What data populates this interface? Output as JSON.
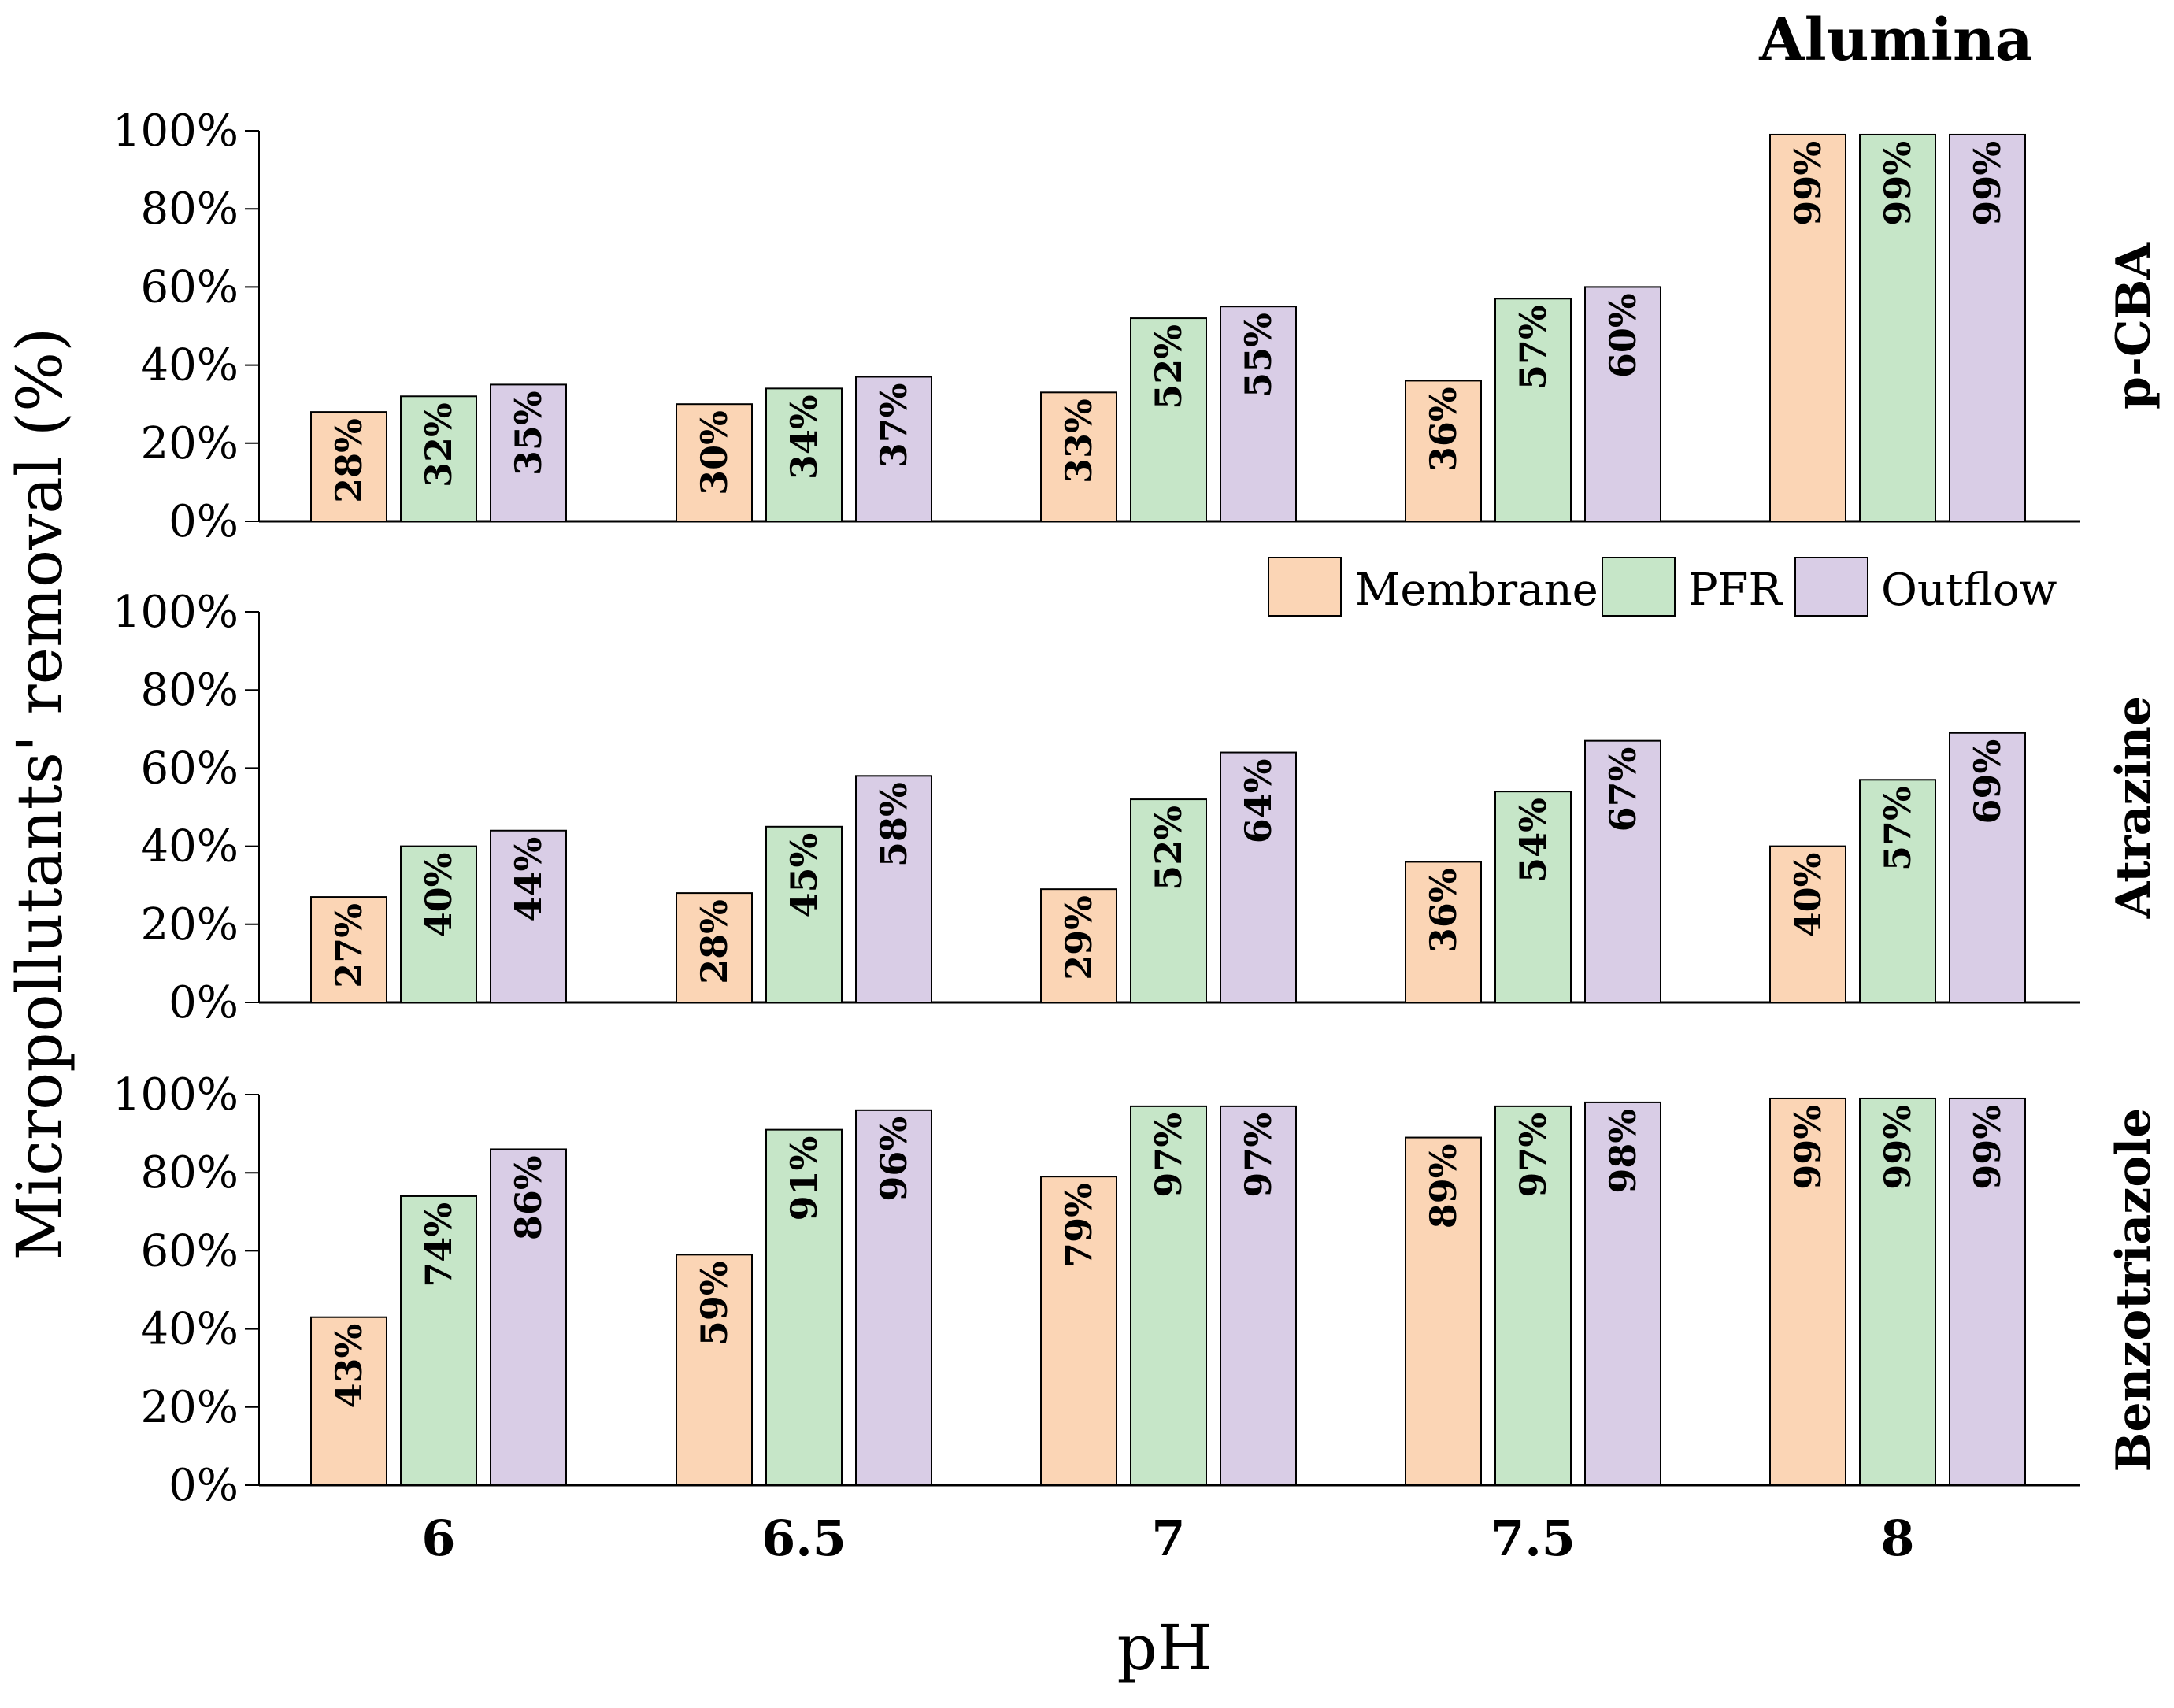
{
  "chart_data": {
    "type": "bar",
    "title": "Alumina",
    "xlabel": "pH",
    "ylabel": "Micropollutants' removal (%)",
    "ylim": [
      0,
      100
    ],
    "y_ticks": [
      "0%",
      "20%",
      "40%",
      "60%",
      "80%",
      "100%"
    ],
    "categories": [
      "6",
      "6.5",
      "7",
      "7.5",
      "8"
    ],
    "legend": {
      "placement": "right, between top and middle panels",
      "entries": [
        "Membrane",
        "PFR",
        "Outflow"
      ]
    },
    "colors": {
      "Membrane": "#fbd5b5",
      "PFR": "#c6e6c8",
      "Outflow": "#d9cde6",
      "outline": "#000000"
    },
    "panels": [
      {
        "name": "p-CBA",
        "series": [
          {
            "name": "Membrane",
            "values": [
              28,
              30,
              33,
              36,
              99
            ],
            "labels": [
              "28%",
              "30%",
              "33%",
              "36%",
              "99%"
            ]
          },
          {
            "name": "PFR",
            "values": [
              32,
              34,
              52,
              57,
              99
            ],
            "labels": [
              "32%",
              "34%",
              "52%",
              "57%",
              "99%"
            ]
          },
          {
            "name": "Outflow",
            "values": [
              35,
              37,
              55,
              60,
              99
            ],
            "labels": [
              "35%",
              "37%",
              "55%",
              "60%",
              "99%"
            ]
          }
        ]
      },
      {
        "name": "Atrazine",
        "series": [
          {
            "name": "Membrane",
            "values": [
              27,
              28,
              29,
              36,
              40
            ],
            "labels": [
              "27%",
              "28%",
              "29%",
              "36%",
              "40%"
            ]
          },
          {
            "name": "PFR",
            "values": [
              40,
              45,
              52,
              54,
              57
            ],
            "labels": [
              "40%",
              "45%",
              "52%",
              "54%",
              "57%"
            ]
          },
          {
            "name": "Outflow",
            "values": [
              44,
              58,
              64,
              67,
              69
            ],
            "labels": [
              "44%",
              "58%",
              "64%",
              "67%",
              "69%"
            ]
          }
        ]
      },
      {
        "name": "Benzotriazole",
        "series": [
          {
            "name": "Membrane",
            "values": [
              43,
              59,
              79,
              89,
              99
            ],
            "labels": [
              "43%",
              "59%",
              "79%",
              "89%",
              "99%"
            ]
          },
          {
            "name": "PFR",
            "values": [
              74,
              91,
              97,
              97,
              99
            ],
            "labels": [
              "74%",
              "91%",
              "97%",
              "97%",
              "99%"
            ]
          },
          {
            "name": "Outflow",
            "values": [
              86,
              96,
              97,
              98,
              99
            ],
            "labels": [
              "86%",
              "96%",
              "97%",
              "98%",
              "99%"
            ]
          }
        ]
      }
    ]
  }
}
